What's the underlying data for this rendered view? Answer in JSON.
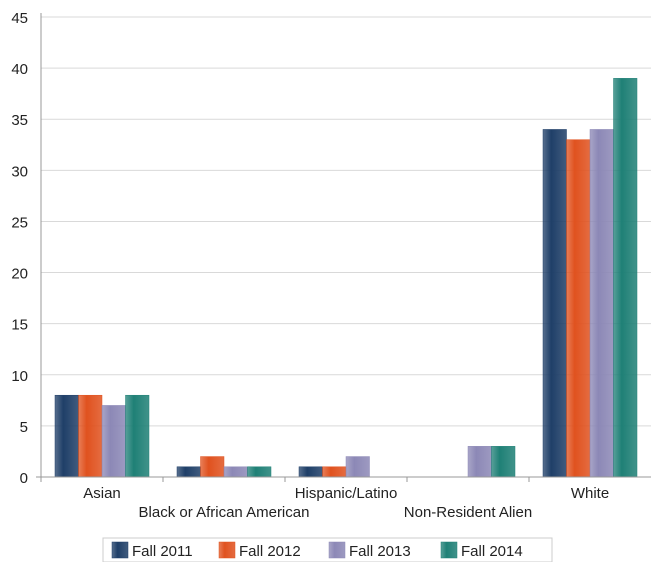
{
  "chart_data": {
    "type": "bar",
    "categories": [
      "Asian",
      "Black or African American",
      "Hispanic/Latino",
      "Non-Resident Alien",
      "White"
    ],
    "series": [
      {
        "name": "Fall 2011",
        "values": [
          8,
          1,
          1,
          0,
          34
        ],
        "color": "#1f3f68"
      },
      {
        "name": "Fall 2012",
        "values": [
          8,
          2,
          1,
          0,
          33
        ],
        "color": "#e0521f"
      },
      {
        "name": "Fall 2013",
        "values": [
          7,
          1,
          2,
          3,
          34
        ],
        "color": "#8c88b6"
      },
      {
        "name": "Fall 2014",
        "values": [
          8,
          1,
          0,
          3,
          39
        ],
        "color": "#1f8076"
      }
    ],
    "ylim": [
      0,
      45
    ],
    "yticks": [
      0,
      5,
      10,
      15,
      20,
      25,
      30,
      35,
      40,
      45
    ],
    "grid": true,
    "legend_position": "bottom"
  }
}
